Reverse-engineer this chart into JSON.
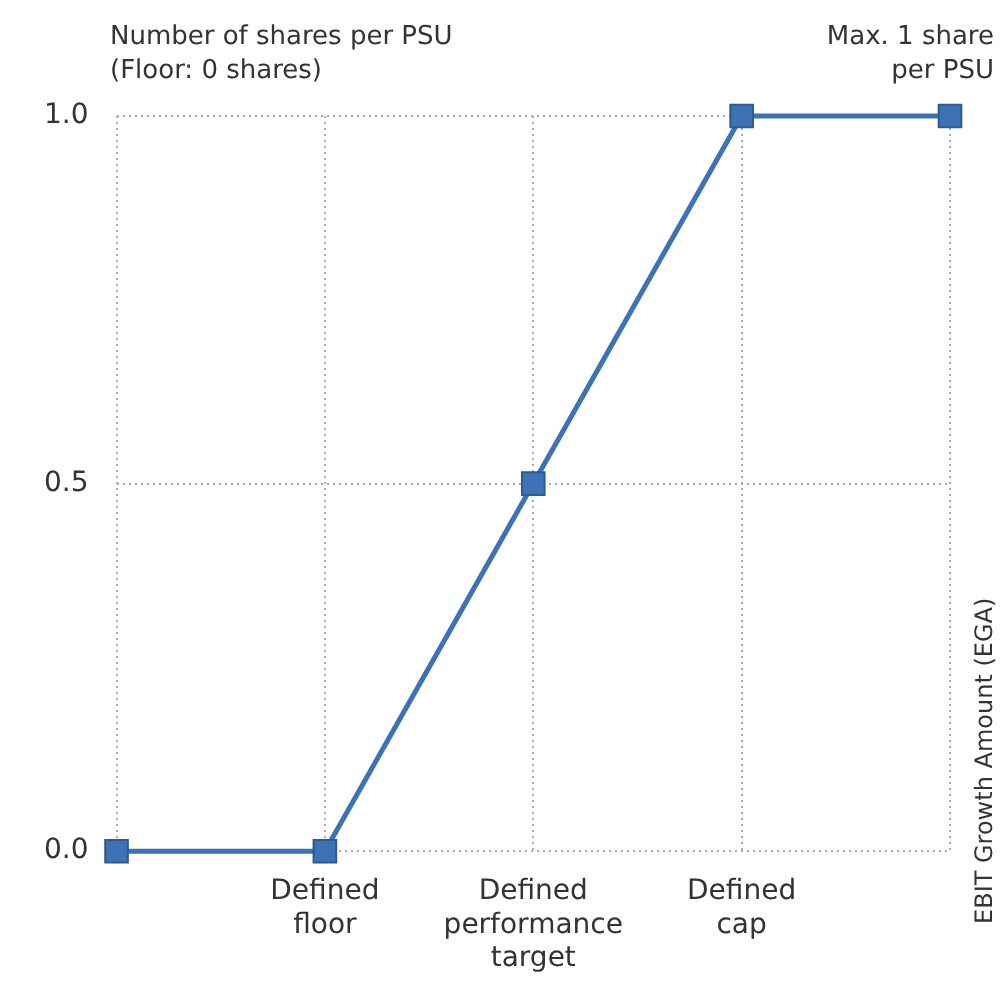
{
  "chart_data": {
    "type": "line",
    "ylabel": "Number of shares per PSU (Floor: 0 shares)",
    "annotations": [
      "Max. 1 share per PSU",
      "EBIT Growth Amount (EGA)"
    ],
    "categories": [
      null,
      "Defined floor",
      "Defined performance target",
      "Defined cap",
      null
    ],
    "series": [
      {
        "color": "#3d72b6",
        "values": [
          0,
          0,
          0.5,
          1,
          1
        ]
      }
    ],
    "ylim": [
      0,
      1
    ],
    "yticks": [
      {
        "value": 0,
        "label": "0.0"
      },
      {
        "value": 0.5,
        "label": "0.5"
      },
      {
        "value": 1,
        "label": "1.0"
      }
    ],
    "grid": true,
    "marker": "square",
    "line_style": "solid",
    "legend": false
  }
}
